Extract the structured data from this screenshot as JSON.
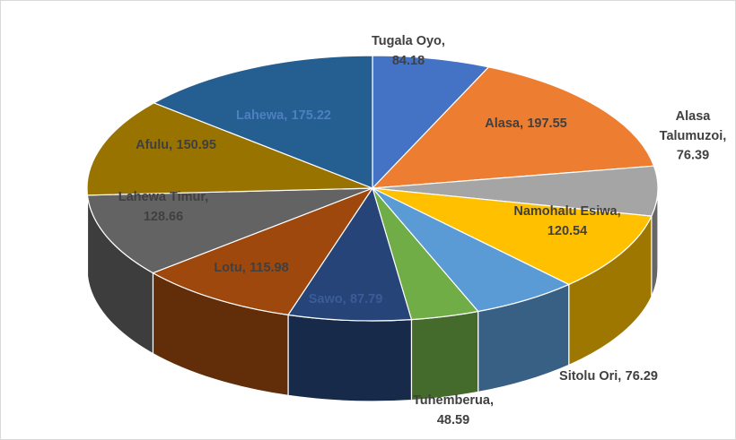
{
  "chart_data": {
    "type": "pie",
    "three_d": true,
    "categories": [
      "Tugala Oyo,",
      "Alasa,",
      "Alasa Talumuzoi,",
      "Namohalu Esiwa,",
      "Sitolu Ori,",
      "Tuhemberua,",
      "Sawo,",
      "Lotu,",
      "Lahewa Timur,",
      "Afulu,",
      "Lahewa,"
    ],
    "values": [
      84.18,
      197.55,
      76.39,
      120.54,
      76.29,
      48.59,
      87.79,
      115.98,
      128.66,
      150.95,
      175.22
    ],
    "colors": [
      "#4472c4",
      "#ed7d31",
      "#a5a5a5",
      "#ffc000",
      "#5b9bd5",
      "#70ad47",
      "#264478",
      "#9e480e",
      "#636363",
      "#997300",
      "#255e91"
    ]
  }
}
